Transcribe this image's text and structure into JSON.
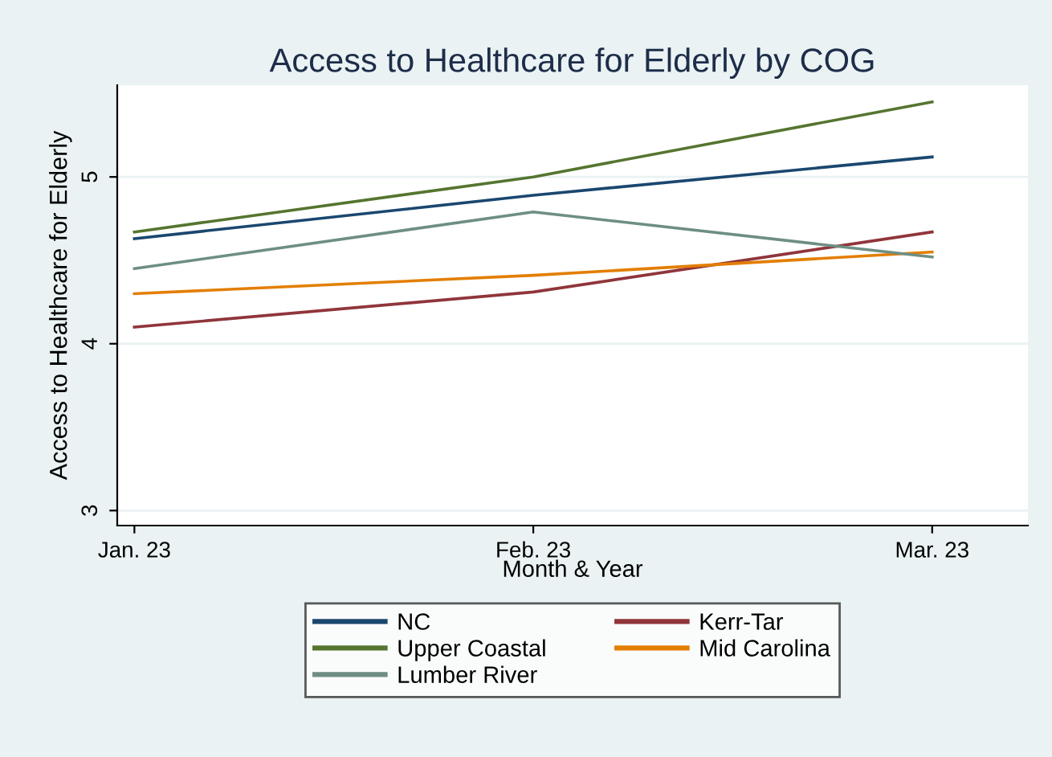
{
  "chart_data": {
    "type": "line",
    "title": "Access to Healthcare for Elderly by COG",
    "xlabel": "Month & Year",
    "ylabel": "Access to Healthcare for Elderly",
    "categories": [
      "Jan. 23",
      "Feb. 23",
      "Mar. 23"
    ],
    "series": [
      {
        "name": "NC",
        "color": "#1a476f",
        "values": [
          4.63,
          4.89,
          5.12
        ]
      },
      {
        "name": "Kerr-Tar",
        "color": "#90353b",
        "values": [
          4.1,
          4.31,
          4.67
        ]
      },
      {
        "name": "Upper Coastal",
        "color": "#55752f",
        "values": [
          4.67,
          5.0,
          5.45
        ]
      },
      {
        "name": "Mid Carolina",
        "color": "#e37e00",
        "values": [
          4.3,
          4.41,
          4.55
        ]
      },
      {
        "name": "Lumber River",
        "color": "#6e8e84",
        "values": [
          4.45,
          4.79,
          4.52
        ]
      }
    ],
    "ylim": [
      2.91,
      5.55
    ],
    "yticks": [
      3,
      4,
      5
    ],
    "grid": "y",
    "legend": "bottom",
    "marker": "none",
    "line_style": "solid"
  }
}
